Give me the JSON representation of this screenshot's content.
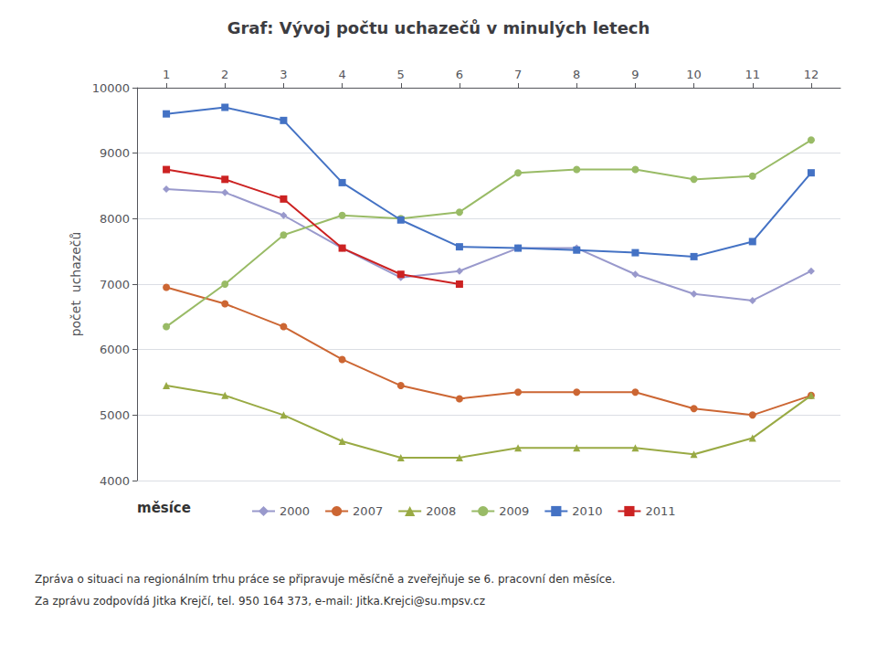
{
  "chart_data": {
    "type": "line",
    "title": "Graf: Vývoj počtu uchazečů v minulých letech",
    "xlabel": "měsíce",
    "ylabel": "počet  uchazečů",
    "x": [
      1,
      2,
      3,
      4,
      5,
      6,
      7,
      8,
      9,
      10,
      11,
      12
    ],
    "xlim": [
      0.5,
      12.5
    ],
    "xticks": [
      1,
      2,
      3,
      4,
      5,
      6,
      7,
      8,
      9,
      10,
      11,
      12
    ],
    "ylim": [
      4000,
      10000
    ],
    "yticks": [
      4000,
      5000,
      6000,
      7000,
      8000,
      9000,
      10000
    ],
    "grid": true,
    "legend": "bottom",
    "series": [
      {
        "name": "2000",
        "color": "#9999CC",
        "marker": "diamond",
        "values": [
          8450,
          8400,
          8050,
          7550,
          7100,
          7200,
          7550,
          7550,
          7150,
          6850,
          6750,
          7200
        ]
      },
      {
        "name": "2007",
        "color": "#CC6633",
        "marker": "circle",
        "values": [
          6950,
          6700,
          6350,
          5850,
          5450,
          5250,
          5350,
          5350,
          5350,
          5100,
          5000,
          5300
        ]
      },
      {
        "name": "2008",
        "color": "#99AA44",
        "marker": "triangle",
        "values": [
          5450,
          5300,
          5000,
          4600,
          4350,
          4350,
          4500,
          4500,
          4500,
          4400,
          4650,
          5300
        ]
      },
      {
        "name": "2009",
        "color": "#99BB66",
        "marker": "circle",
        "values": [
          6350,
          7000,
          7750,
          8050,
          8000,
          8100,
          8700,
          8750,
          8750,
          8600,
          8650,
          9200
        ]
      },
      {
        "name": "2010",
        "color": "#4472C4",
        "marker": "square",
        "values": [
          9600,
          9700,
          9500,
          8550,
          7980,
          7570,
          7550,
          7520,
          7480,
          7420,
          7650,
          8700
        ]
      },
      {
        "name": "2011",
        "color": "#CC2222",
        "marker": "square",
        "values": [
          8750,
          8600,
          8300,
          7550,
          7150,
          7000,
          null,
          null,
          null,
          null,
          null,
          null
        ]
      }
    ],
    "annotations": [
      "Zpráva o situaci na regionálním trhu práce se připravuje měsíčně a zveřejňuje se 6. pracovní den měsíce.",
      "Za zprávu zodpovídá Jitka Krejčí, tel. 950 164 373, e-mail: Jitka.Krejci@su.mpsv.cz"
    ]
  }
}
